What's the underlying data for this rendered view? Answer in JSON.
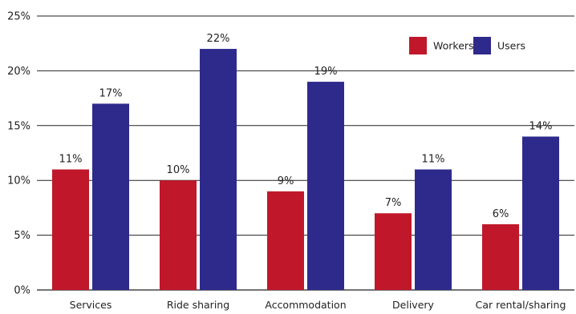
{
  "chart_data": {
    "type": "bar",
    "categories": [
      "Services",
      "Ride sharing",
      "Accommodation",
      "Delivery",
      "Car rental/sharing"
    ],
    "series": [
      {
        "name": "Workers",
        "values": [
          11,
          10,
          9,
          7,
          6
        ],
        "labels": [
          "11%",
          "10%",
          "9%",
          "7%",
          "6%"
        ],
        "color": "#c0182a"
      },
      {
        "name": "Users",
        "values": [
          17,
          22,
          19,
          11,
          14
        ],
        "labels": [
          "17%",
          "22%",
          "19%",
          "11%",
          "14%"
        ],
        "color": "#2e2a8c"
      }
    ],
    "ylim": [
      0,
      25
    ],
    "yticks": [
      {
        "value": 0,
        "label": "0%"
      },
      {
        "value": 5,
        "label": "5%"
      },
      {
        "value": 10,
        "label": "10%"
      },
      {
        "value": 15,
        "label": "15%"
      },
      {
        "value": 20,
        "label": "20%"
      },
      {
        "value": 25,
        "label": "25%"
      }
    ],
    "grid": true,
    "legend_position": "top-right"
  }
}
